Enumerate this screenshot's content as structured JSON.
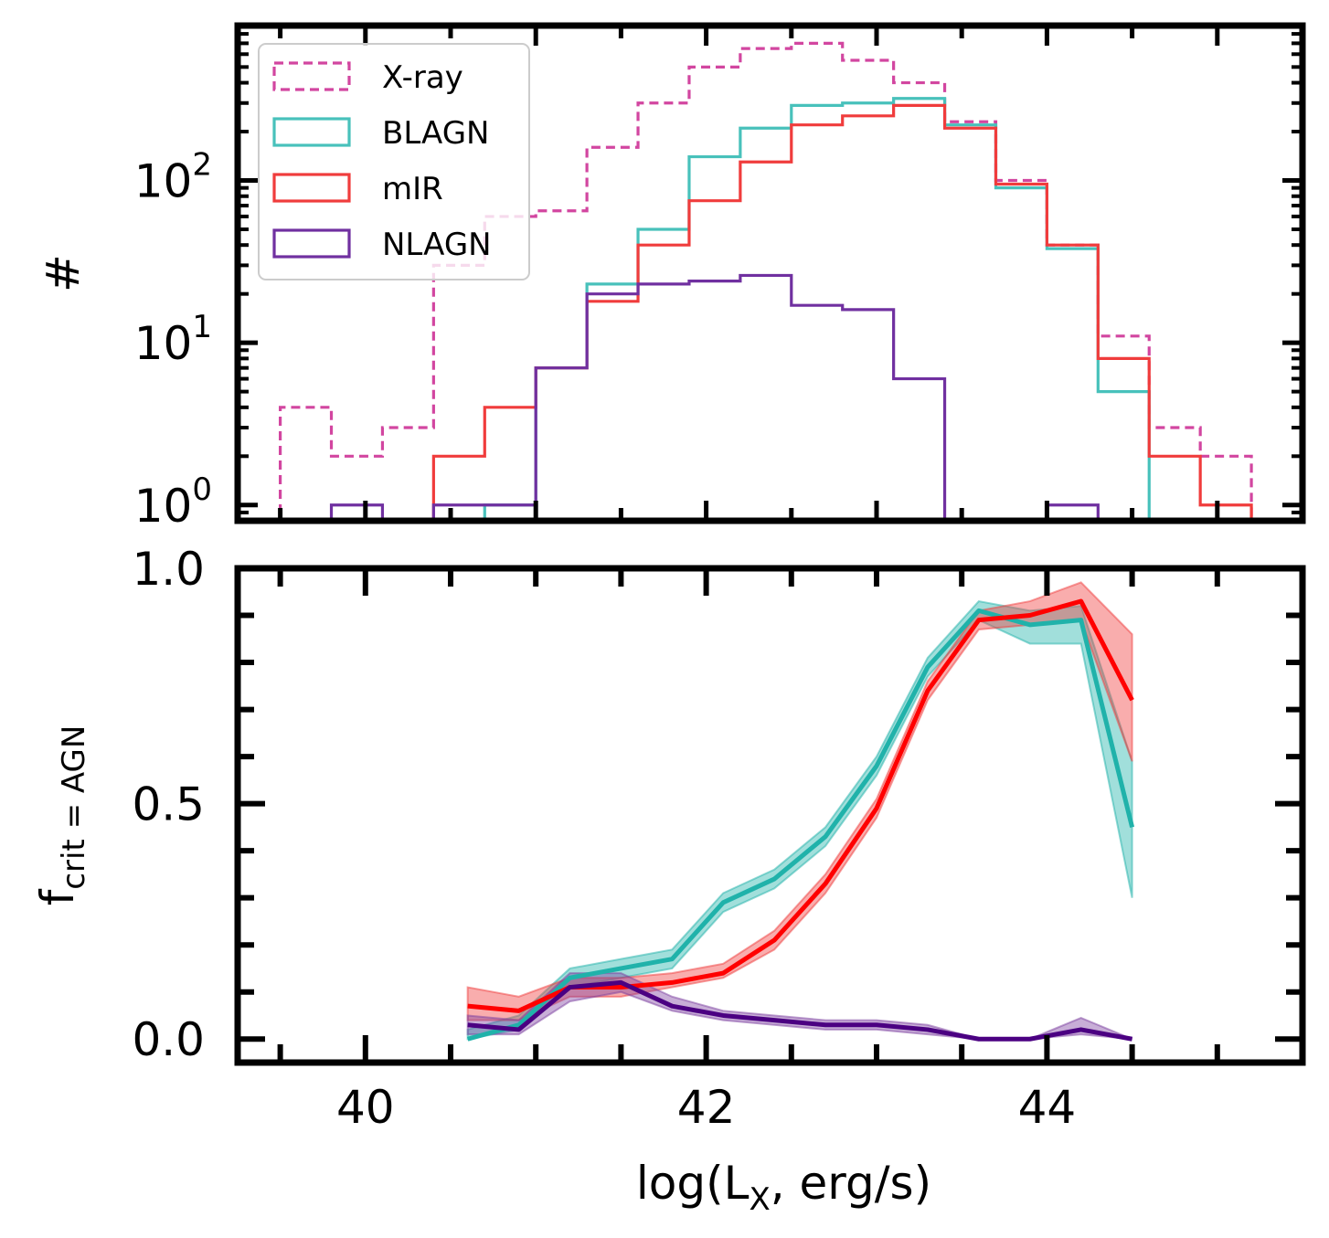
{
  "chart_data": [
    {
      "type": "histogram",
      "ylabel": "#",
      "yscale": "log",
      "ylim": [
        0.8,
        900
      ],
      "xlim": [
        39.25,
        45.5
      ],
      "yticks": [
        {
          "value": 1,
          "base": "10",
          "exp": "0"
        },
        {
          "value": 10,
          "base": "10",
          "exp": "1"
        },
        {
          "value": 100,
          "base": "10",
          "exp": "2"
        }
      ],
      "legend": {
        "position": "upper-left"
      },
      "bin_edges": [
        39.5,
        39.8,
        40.1,
        40.4,
        40.7,
        41.0,
        41.3,
        41.6,
        41.9,
        42.2,
        42.5,
        42.8,
        43.1,
        43.4,
        43.7,
        44.0,
        44.3,
        44.6,
        44.9,
        45.2
      ],
      "series": [
        {
          "name": "X-ray",
          "color": "#d246a0",
          "style": "dashed",
          "counts": [
            4,
            2,
            3,
            30,
            60,
            65,
            160,
            300,
            500,
            650,
            700,
            550,
            400,
            230,
            100,
            40,
            11,
            3,
            2
          ]
        },
        {
          "name": "BLAGN",
          "color": "#48c1bb",
          "style": "solid",
          "counts": [
            0,
            0,
            0,
            0,
            1,
            7,
            23,
            50,
            140,
            210,
            290,
            300,
            320,
            220,
            90,
            38,
            5,
            0,
            0
          ]
        },
        {
          "name": "mIR",
          "color": "#f03c3c",
          "style": "solid",
          "counts": [
            0,
            0,
            0,
            2,
            4,
            7,
            18,
            40,
            75,
            130,
            220,
            250,
            290,
            210,
            95,
            40,
            8,
            2,
            1
          ]
        },
        {
          "name": "NLAGN",
          "color": "#7030a0",
          "style": "solid",
          "counts": [
            0,
            1,
            0,
            1,
            1,
            7,
            20,
            23,
            24,
            26,
            17,
            16,
            6,
            0,
            0,
            1,
            0,
            0,
            0
          ]
        }
      ]
    },
    {
      "type": "line",
      "xlabel_main": "log(L",
      "xlabel_sub": "X",
      "xlabel_tail": ", erg/s)",
      "ylabel_main": "f",
      "ylabel_sub": "crit = AGN",
      "xlim": [
        39.25,
        45.5
      ],
      "ylim": [
        -0.05,
        1.0
      ],
      "xticks": [
        {
          "value": 40,
          "label": "40"
        },
        {
          "value": 42,
          "label": "42"
        },
        {
          "value": 44,
          "label": "44"
        }
      ],
      "yticks": [
        {
          "value": 0.0,
          "label": "0.0"
        },
        {
          "value": 0.5,
          "label": "0.5"
        },
        {
          "value": 1.0,
          "label": "1.0"
        }
      ],
      "x": [
        40.6,
        40.9,
        41.2,
        41.5,
        41.8,
        42.1,
        42.4,
        42.7,
        43.0,
        43.3,
        43.6,
        43.9,
        44.2,
        44.5
      ],
      "series": [
        {
          "color": "#20b2aa",
          "band_color": "#20b2aa",
          "values": [
            0.0,
            0.03,
            0.13,
            0.15,
            0.17,
            0.29,
            0.34,
            0.43,
            0.58,
            0.79,
            0.91,
            0.88,
            0.89,
            0.45
          ],
          "lower": [
            0.0,
            0.02,
            0.11,
            0.13,
            0.15,
            0.27,
            0.32,
            0.41,
            0.56,
            0.77,
            0.89,
            0.84,
            0.84,
            0.3
          ],
          "upper": [
            0.02,
            0.05,
            0.15,
            0.17,
            0.19,
            0.31,
            0.36,
            0.45,
            0.6,
            0.81,
            0.93,
            0.91,
            0.92,
            0.59
          ]
        },
        {
          "color": "#ff0000",
          "band_color": "#f03c3c",
          "values": [
            0.07,
            0.06,
            0.11,
            0.11,
            0.12,
            0.14,
            0.21,
            0.33,
            0.49,
            0.74,
            0.89,
            0.9,
            0.93,
            0.72
          ],
          "lower": [
            0.04,
            0.04,
            0.09,
            0.09,
            0.11,
            0.13,
            0.19,
            0.31,
            0.47,
            0.72,
            0.87,
            0.88,
            0.89,
            0.59
          ],
          "upper": [
            0.11,
            0.09,
            0.13,
            0.13,
            0.14,
            0.16,
            0.23,
            0.35,
            0.51,
            0.76,
            0.91,
            0.93,
            0.97,
            0.86
          ]
        },
        {
          "color": "#4b0082",
          "band_color": "#7b3fa0",
          "values": [
            0.03,
            0.02,
            0.11,
            0.12,
            0.07,
            0.05,
            0.04,
            0.03,
            0.03,
            0.02,
            0.0,
            0.0,
            0.02,
            0.0
          ],
          "lower": [
            0.01,
            0.01,
            0.08,
            0.1,
            0.06,
            0.04,
            0.03,
            0.02,
            0.02,
            0.01,
            0.0,
            0.0,
            0.01,
            0.0
          ],
          "upper": [
            0.05,
            0.04,
            0.14,
            0.14,
            0.09,
            0.06,
            0.05,
            0.04,
            0.04,
            0.03,
            0.0,
            0.0,
            0.045,
            0.0
          ]
        }
      ]
    }
  ]
}
